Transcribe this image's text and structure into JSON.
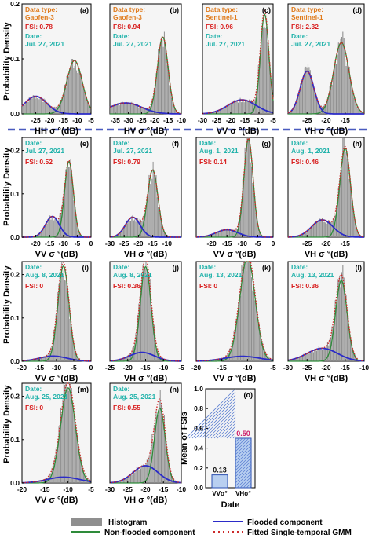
{
  "figure": {
    "y_axis_title": "Probability Density",
    "colors": {
      "histogram": "#8f8f8f",
      "flooded": "#2b2bc8",
      "non_flooded": "#2e8b3a",
      "fitted": "#cc2a2a",
      "datatype_text": "#e07b1c",
      "date_text": "#20b2aa",
      "fsi_text": "#d81e1e",
      "separator": "#4a5bbf"
    },
    "legend": {
      "histogram": "Histogram",
      "flooded": "Flooded component",
      "non_flooded": "Non-flooded component",
      "fitted": "Fitted Single-temporal GMM"
    }
  },
  "chart_data": [
    {
      "id": "a",
      "type": "histogram",
      "tag": "(a)",
      "xlabel": "HH σ °(dB)",
      "xlim": [
        -30,
        -5
      ],
      "ylim": [
        0,
        0.2
      ],
      "xticks": [
        "-25",
        "-20",
        "-15",
        "-10",
        "-5"
      ],
      "yticks": [
        "0.0",
        "0.1",
        "0.2"
      ],
      "datatype_label": "Data type:",
      "datatype": "Gaofen-3",
      "fsi": "FSI: 0.78",
      "date_label": "Date:",
      "date": "Jul. 27, 2021",
      "comp_flood": {
        "w": 0.32,
        "mu": -25,
        "sd": 4
      },
      "comp_nonflood": {
        "w": 0.68,
        "mu": -11,
        "sd": 2.8
      }
    },
    {
      "id": "b",
      "type": "histogram",
      "tag": "(b)",
      "xlabel": "HV σ °(dB)",
      "xlim": [
        -37,
        -10
      ],
      "ylim": [
        0,
        0.2
      ],
      "xticks": [
        "-35",
        "-30",
        "-25",
        "-20",
        "-15",
        "-10"
      ],
      "yticks": [],
      "datatype_label": "Data type:",
      "datatype": "Gaofen-3",
      "fsi": "FSI: 0.94",
      "date_label": "Date:",
      "date": "Jul. 27, 2021",
      "comp_flood": {
        "w": 0.3,
        "mu": -31,
        "sd": 6
      },
      "comp_nonflood": {
        "w": 0.7,
        "mu": -17,
        "sd": 2
      }
    },
    {
      "id": "c",
      "type": "histogram",
      "tag": "(c)",
      "xlabel": "VV σ °(dB)",
      "xlim": [
        -30,
        -5
      ],
      "ylim": [
        0,
        0.2
      ],
      "xticks": [
        "-30",
        "-25",
        "-20",
        "-15",
        "-10",
        "-5"
      ],
      "yticks": [],
      "datatype_label": "Data type:",
      "datatype": "Sentinel-1",
      "fsi": "FSI: 0.96",
      "date_label": "Date:",
      "date": "Jul. 27, 2021",
      "comp_flood": {
        "w": 0.32,
        "mu": -16,
        "sd": 5
      },
      "comp_nonflood": {
        "w": 0.68,
        "mu": -8,
        "sd": 1.5
      }
    },
    {
      "id": "d",
      "type": "histogram",
      "tag": "(d)",
      "xlabel": "VH σ °(dB)",
      "xlim": [
        -30,
        -10
      ],
      "ylim": [
        0,
        0.2
      ],
      "xticks": [
        "-25",
        "-20",
        "-15"
      ],
      "yticks": [],
      "datatype_label": "Data type:",
      "datatype": "Sentinel-1",
      "fsi": "FSI: 2.32",
      "date_label": "Date:",
      "date": "Jul. 27, 2021",
      "comp_flood": {
        "w": 0.35,
        "mu": -25,
        "sd": 1.8
      },
      "comp_nonflood": {
        "w": 0.65,
        "mu": -16,
        "sd": 2
      }
    },
    {
      "id": "e",
      "type": "histogram",
      "tag": "(e)",
      "xlabel": "VV σ °(dB)",
      "xlim": [
        -25,
        0
      ],
      "ylim": [
        0,
        0.23
      ],
      "xticks": [
        "-20",
        "-15",
        "-10",
        "-5",
        "0"
      ],
      "yticks": [
        "0.0",
        "0.1",
        "0.2"
      ],
      "date_label": "Date:",
      "date": "Jul. 27, 2021",
      "fsi": "FSI: 0.52",
      "comp_flood": {
        "w": 0.3,
        "mu": -14,
        "sd": 2.5
      },
      "comp_nonflood": {
        "w": 0.7,
        "mu": -8,
        "sd": 1.6
      }
    },
    {
      "id": "f",
      "type": "histogram",
      "tag": "(f)",
      "xlabel": "VH σ °(dB)",
      "xlim": [
        -30,
        -5
      ],
      "ylim": [
        0,
        0.23
      ],
      "xticks": [
        "-30",
        "-25",
        "-20",
        "-15",
        "-10"
      ],
      "yticks": [],
      "date_label": "Date:",
      "date": "Jul. 27, 2021",
      "fsi": "FSI: 0.79",
      "comp_flood": {
        "w": 0.3,
        "mu": -22,
        "sd": 2.6
      },
      "comp_nonflood": {
        "w": 0.7,
        "mu": -15,
        "sd": 1.8
      }
    },
    {
      "id": "g",
      "type": "histogram",
      "tag": "(g)",
      "xlabel": "VV σ °(dB)",
      "xlim": [
        -25,
        0
      ],
      "ylim": [
        0,
        0.23
      ],
      "xticks": [
        "-20",
        "-15",
        "-10",
        "-5",
        "0"
      ],
      "yticks": [],
      "date_label": "Date:",
      "date": "Aug. 1, 2021",
      "fsi": "FSI: 0.14",
      "comp_flood": {
        "w": 0.15,
        "mu": -15,
        "sd": 3.5
      },
      "comp_nonflood": {
        "w": 0.85,
        "mu": -8,
        "sd": 1.5
      }
    },
    {
      "id": "h",
      "type": "histogram",
      "tag": "(h)",
      "xlabel": "VH σ °(dB)",
      "xlim": [
        -30,
        -10
      ],
      "ylim": [
        0,
        0.23
      ],
      "xticks": [
        "-25",
        "-20",
        "-15"
      ],
      "yticks": [],
      "date_label": "Date:",
      "date": "Aug. 1, 2021",
      "fsi": "FSI: 0.46",
      "comp_flood": {
        "w": 0.28,
        "mu": -21,
        "sd": 2.8
      },
      "comp_nonflood": {
        "w": 0.72,
        "mu": -15,
        "sd": 1.4
      }
    },
    {
      "id": "i",
      "type": "histogram",
      "tag": "(i)",
      "xlabel": "VV σ °(dB)",
      "xlim": [
        -20,
        0
      ],
      "ylim": [
        0,
        0.23
      ],
      "xticks": [
        "-20",
        "-15",
        "-10",
        "-5",
        "0"
      ],
      "yticks": [
        "0.0",
        "0.1",
        "0.2"
      ],
      "date_label": "Date:",
      "date": "Aug. 8, 2021",
      "fsi": "FSI: 0",
      "comp_flood": {
        "w": 0.12,
        "mu": -11,
        "sd": 4
      },
      "comp_nonflood": {
        "w": 0.88,
        "mu": -8,
        "sd": 1.6
      }
    },
    {
      "id": "j",
      "type": "histogram",
      "tag": "(j)",
      "xlabel": "VH σ °(dB)",
      "xlim": [
        -25,
        -5
      ],
      "ylim": [
        0,
        0.23
      ],
      "xticks": [
        "-25",
        "-20",
        "-15",
        "-10",
        "-5"
      ],
      "yticks": [],
      "date_label": "Date:",
      "date": "Aug. 8, 2021",
      "fsi": "FSI: 0.36",
      "comp_flood": {
        "w": 0.18,
        "mu": -16,
        "sd": 3.5
      },
      "comp_nonflood": {
        "w": 0.82,
        "mu": -15,
        "sd": 1.5
      }
    },
    {
      "id": "k",
      "type": "histogram",
      "tag": "(k)",
      "xlabel": "VV σ °(dB)",
      "xlim": [
        -20,
        -5
      ],
      "ylim": [
        0,
        0.23
      ],
      "xticks": [
        "-20",
        "-15",
        "-10",
        "-5"
      ],
      "yticks": [],
      "date_label": "Date:",
      "date": "Aug. 13, 2021",
      "fsi": "FSI: 0",
      "comp_flood": {
        "w": 0.1,
        "mu": -11,
        "sd": 3.5
      },
      "comp_nonflood": {
        "w": 0.9,
        "mu": -10,
        "sd": 1.5
      }
    },
    {
      "id": "l",
      "type": "histogram",
      "tag": "(l)",
      "xlabel": "VH σ °(dB)",
      "xlim": [
        -30,
        -10
      ],
      "ylim": [
        0,
        0.23
      ],
      "xticks": [
        "-30",
        "-25",
        "-20",
        "-15",
        "-10"
      ],
      "yticks": [],
      "date_label": "Date:",
      "date": "Aug. 13, 2021",
      "fsi": "FSI: 0.36",
      "comp_flood": {
        "w": 0.3,
        "mu": -21,
        "sd": 4
      },
      "comp_nonflood": {
        "w": 0.7,
        "mu": -16,
        "sd": 1.5
      }
    },
    {
      "id": "m",
      "type": "histogram",
      "tag": "(m)",
      "xlabel": "VV σ °(dB)",
      "xlim": [
        -20,
        -5
      ],
      "ylim": [
        0,
        0.23
      ],
      "xticks": [
        "-20",
        "-15",
        "-10",
        "-5"
      ],
      "yticks": [
        "0.0",
        "0.1",
        "0.2"
      ],
      "date_label": "Date:",
      "date": "Aug. 25, 2021",
      "fsi": "FSI: 0",
      "comp_flood": {
        "w": 0.12,
        "mu": -11,
        "sd": 3.5
      },
      "comp_nonflood": {
        "w": 0.88,
        "mu": -10,
        "sd": 1.6
      }
    },
    {
      "id": "n",
      "type": "histogram",
      "tag": "(n)",
      "xlabel": "VH σ °(dB)",
      "xlim": [
        -30,
        -10
      ],
      "ylim": [
        0,
        0.23
      ],
      "xticks": [
        "-30",
        "-25",
        "-20",
        "-15",
        "-10"
      ],
      "yticks": [],
      "date_label": "Date:",
      "date": "Aug. 25, 2021",
      "fsi": "FSI: 0.55",
      "comp_flood": {
        "w": 0.35,
        "mu": -20,
        "sd": 3.5
      },
      "comp_nonflood": {
        "w": 0.65,
        "mu": -16,
        "sd": 1.5
      }
    },
    {
      "id": "o",
      "type": "bar",
      "tag": "(o)",
      "ylabel": "Mean of FSIs",
      "xlabel": "Date",
      "ylim": [
        0,
        1
      ],
      "yticks": [
        "0.0",
        "0.2",
        "0.4",
        "0.6",
        "0.8",
        "1.0"
      ],
      "categories": [
        "VVσ°",
        "VHσ°"
      ],
      "values": [
        0.13,
        0.5
      ],
      "value_labels": [
        "0.13",
        "0.50"
      ],
      "value_label_colors": [
        "#111111",
        "#cc1f6a"
      ],
      "bar_colors": [
        "#b8cff0",
        "#b8cff0"
      ]
    }
  ]
}
